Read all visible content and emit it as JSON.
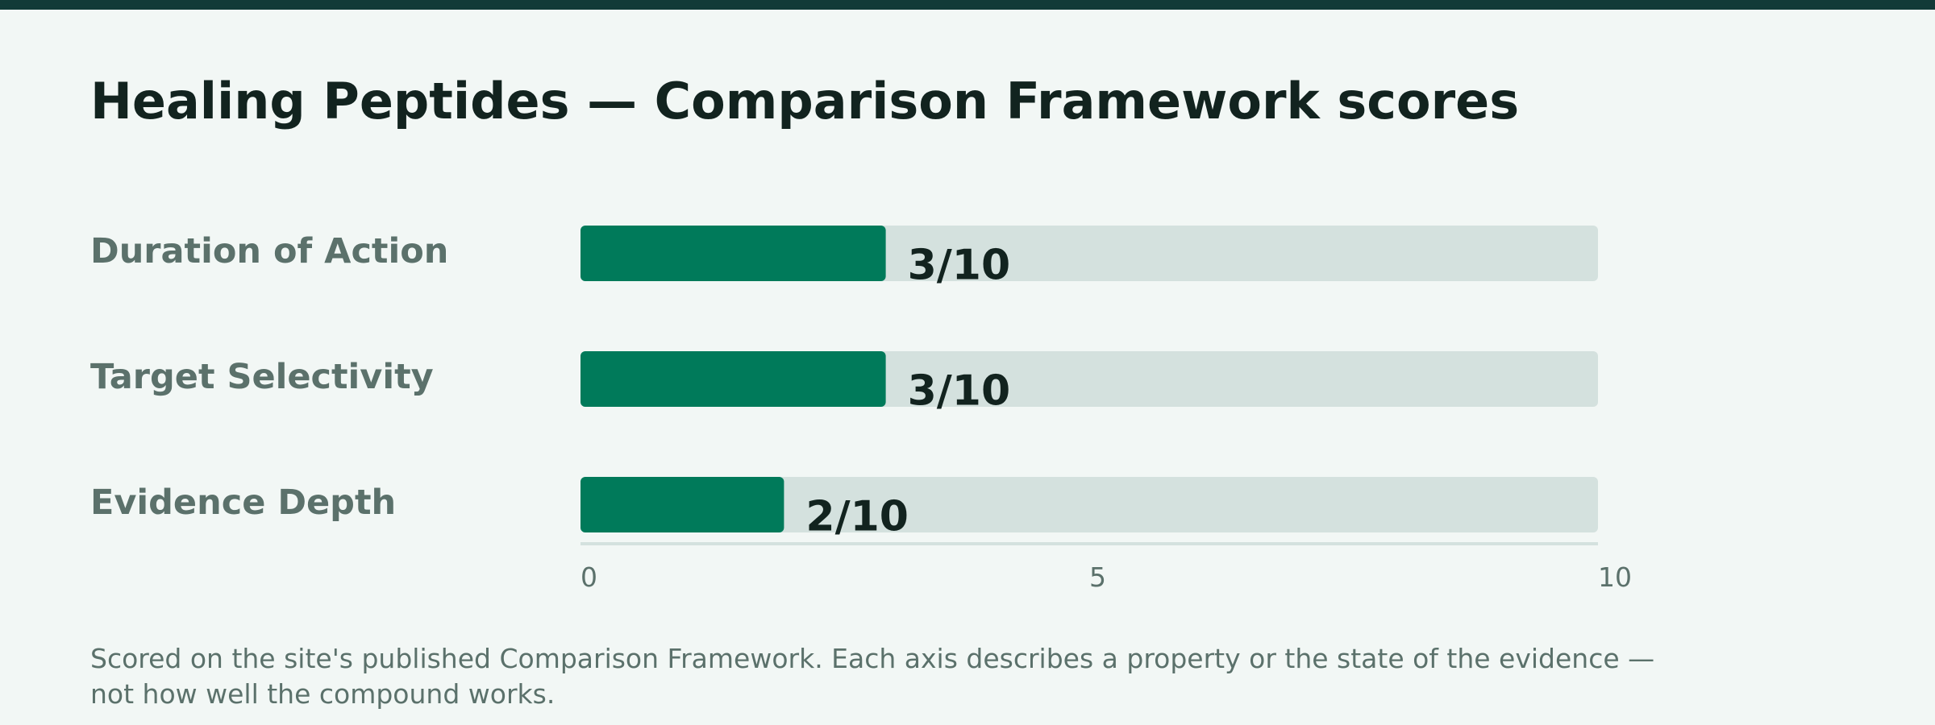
{
  "title": "Healing Peptides — Comparison Framework scores",
  "footnote": "Scored on the site's published Comparison Framework. Each axis describes a property or the state of the evidence — not how well the compound works.",
  "colors": {
    "top_bar": "#123a38",
    "background": "#f2f7f5",
    "bar_fill": "#007a5a",
    "bar_track": "#d4e1de",
    "label_text": "#5b716b",
    "title_text": "#12231f"
  },
  "chart_data": {
    "type": "bar",
    "orientation": "horizontal",
    "title": "Healing Peptides — Comparison Framework scores",
    "categories": [
      "Duration of Action",
      "Target Selectivity",
      "Evidence Depth"
    ],
    "values": [
      3,
      3,
      2
    ],
    "value_labels": [
      "3/10",
      "3/10",
      "2/10"
    ],
    "xlim": [
      0,
      10
    ],
    "x_ticks": [
      0,
      5,
      10
    ],
    "x_tick_labels": [
      "0",
      "5",
      "10"
    ],
    "grid": false,
    "legend": "none"
  }
}
